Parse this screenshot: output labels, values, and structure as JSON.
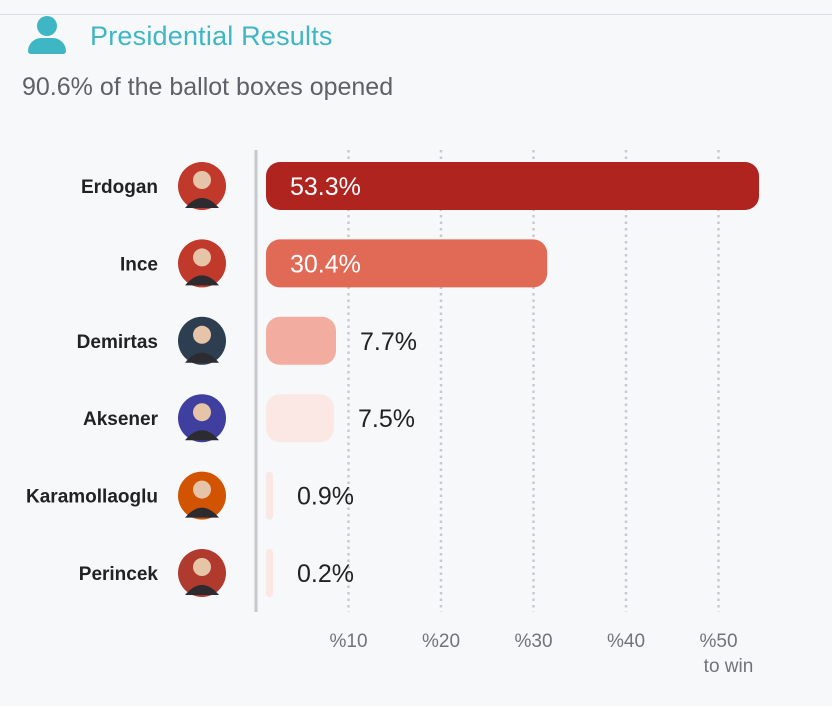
{
  "header": {
    "title": "Presidential Results",
    "subtitle": "90.6% of the ballot boxes opened",
    "icon": "user-icon"
  },
  "colors": {
    "accent": "#3fb6c4",
    "grid": "#c9cacf",
    "axis": "#c8c8cc",
    "label": "#222222"
  },
  "chart_data": {
    "type": "bar",
    "orientation": "horizontal",
    "title": "Presidential Results",
    "subtitle": "90.6% of the ballot boxes opened",
    "categories": [
      "Erdogan",
      "Ince",
      "Demirtas",
      "Aksener",
      "Karamollaoglu",
      "Perincek"
    ],
    "values": [
      53.3,
      30.4,
      7.7,
      7.5,
      0.9,
      0.2
    ],
    "value_labels": [
      "53.3%",
      "30.4%",
      "7.7%",
      "7.5%",
      "0.9%",
      "0.2%"
    ],
    "bar_colors": [
      "#b02420",
      "#e06a55",
      "#f2ada0",
      "#fbe7e4",
      "#fbe7e4",
      "#fbe7e4"
    ],
    "avatar_colors": [
      "#c0392b",
      "#c0392b",
      "#2c3e50",
      "#3f3f9f",
      "#d35400",
      "#b03a2e"
    ],
    "xlim": [
      0,
      55
    ],
    "ticks": [
      10,
      20,
      30,
      40,
      50
    ],
    "tick_labels": [
      "%10",
      "%20",
      "%30",
      "%40",
      "%50"
    ],
    "threshold_label": "to win",
    "grid": "vertical dotted"
  }
}
